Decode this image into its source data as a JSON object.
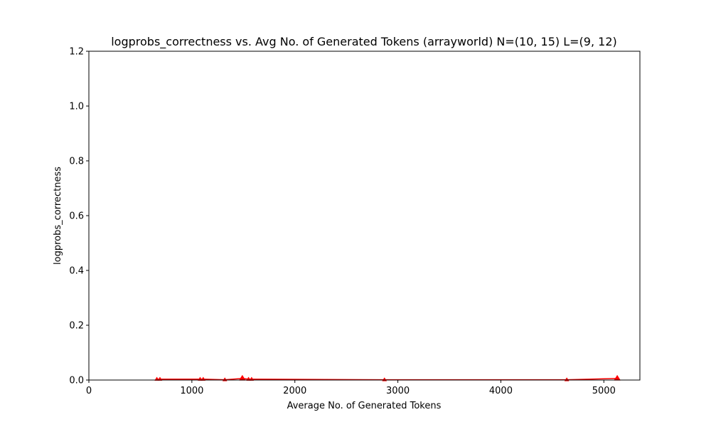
{
  "chart_data": {
    "type": "line",
    "title": "logprobs_correctness vs. Avg No. of Generated Tokens (arrayworld) N=(10, 15) L=(9, 12)",
    "xlabel": "Average No. of Generated Tokens",
    "ylabel": "logprobs_correctness",
    "xlim": [
      0,
      5350
    ],
    "ylim": [
      0,
      1.2
    ],
    "xticks": [
      0,
      1000,
      2000,
      3000,
      4000,
      5000
    ],
    "yticks": [
      0.0,
      0.2,
      0.4,
      0.6,
      0.8,
      1.0,
      1.2
    ],
    "xtick_labels": [
      "0",
      "1000",
      "2000",
      "3000",
      "4000",
      "5000"
    ],
    "ytick_labels": [
      "0.0",
      "0.2",
      "0.4",
      "0.6",
      "0.8",
      "1.0",
      "1.2"
    ],
    "grid": false,
    "color": "#ff0000",
    "series": [
      {
        "x": [
          660,
          690,
          1080,
          1110,
          1320,
          1490,
          1550,
          1580,
          2870,
          4640,
          5130
        ],
        "y": [
          0.003,
          0.003,
          0.003,
          0.003,
          0.001,
          0.006,
          0.003,
          0.003,
          0.001,
          0.001,
          0.006
        ],
        "marker": "^"
      }
    ]
  }
}
